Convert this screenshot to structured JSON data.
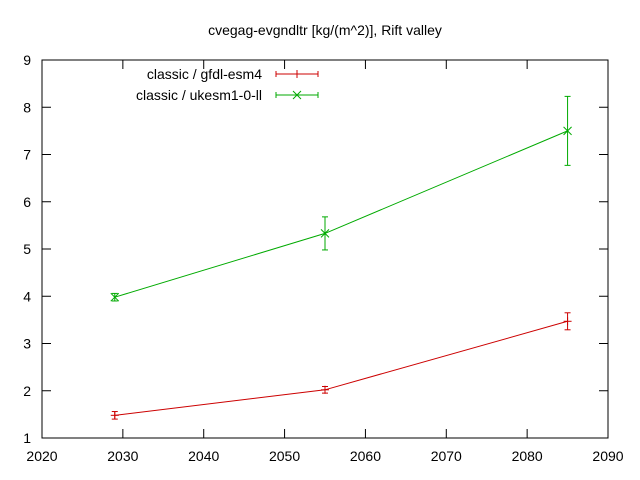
{
  "chart_data": {
    "type": "line",
    "title": "cvegag-evgndltr [kg/(m^2)], Rift valley",
    "xlabel": "",
    "ylabel": "",
    "xlim": [
      2020,
      2090
    ],
    "ylim": [
      1,
      9
    ],
    "x_ticks": [
      2020,
      2030,
      2040,
      2050,
      2060,
      2070,
      2080,
      2090
    ],
    "y_ticks": [
      1,
      2,
      3,
      4,
      5,
      6,
      7,
      8,
      9
    ],
    "grid": false,
    "legend_position": "top-left",
    "series": [
      {
        "name": "classic / gfdl-esm4",
        "color": "#cc0000",
        "marker": "plus",
        "x": [
          2029,
          2055,
          2085
        ],
        "y": [
          1.48,
          2.02,
          3.47
        ],
        "err": [
          0.08,
          0.07,
          0.18
        ]
      },
      {
        "name": "classic / ukesm1-0-ll",
        "color": "#00aa00",
        "marker": "cross",
        "x": [
          2029,
          2055,
          2085
        ],
        "y": [
          3.98,
          5.33,
          7.5
        ],
        "err": [
          0.08,
          0.35,
          0.73
        ]
      }
    ]
  }
}
